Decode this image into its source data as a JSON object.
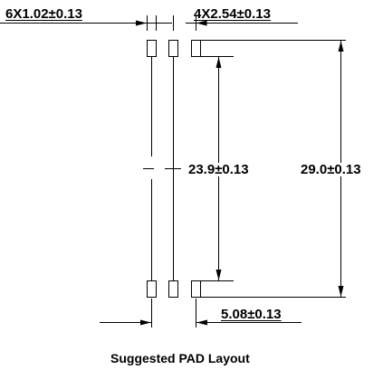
{
  "labels": {
    "pad_width": "6X1.02±0.13",
    "pad_pitch": "4X2.54±0.13",
    "inner_span": "23.9±0.13",
    "outer_span": "29.0±0.13",
    "pad_length": "5.08±0.13"
  },
  "caption": "Suggested PAD Layout",
  "colors": {
    "line": "#000000",
    "background": "#ffffff"
  }
}
